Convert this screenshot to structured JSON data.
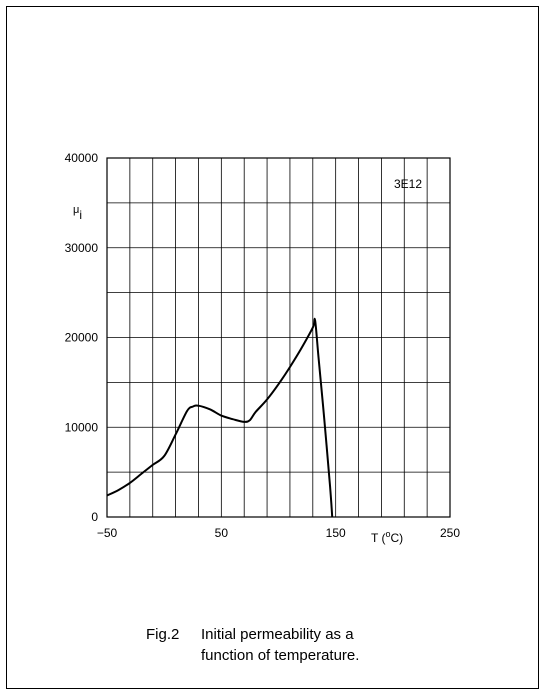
{
  "caption": {
    "figure_number": "Fig.2",
    "line1": "Initial permeability as a",
    "line2": "function of temperature."
  },
  "chart_data": {
    "type": "line",
    "title": "",
    "xlabel": "T (°C)",
    "xlabel_base": "T (",
    "xlabel_degree": "o",
    "xlabel_unit": "C)",
    "ylabel": "μi",
    "ylabel_symbol": "μ",
    "ylabel_subscript": "i",
    "material_label": "3E12",
    "xlim": [
      -50,
      250
    ],
    "ylim": [
      0,
      40000
    ],
    "grid": true,
    "x_tick_labels": [
      {
        "value": -50,
        "label": "−50"
      },
      {
        "value": 50,
        "label": "50"
      },
      {
        "value": 150,
        "label": "150"
      },
      {
        "value": 250,
        "label": "250"
      }
    ],
    "y_tick_labels": [
      {
        "value": 0,
        "label": "0"
      },
      {
        "value": 10000,
        "label": "10000"
      },
      {
        "value": 20000,
        "label": "20000"
      },
      {
        "value": 30000,
        "label": "30000"
      },
      {
        "value": 40000,
        "label": "40000"
      }
    ],
    "x_grid_step": 20,
    "y_grid_step": 5000,
    "series": [
      {
        "x": [
          -50,
          -40,
          -30,
          -20,
          -10,
          0,
          10,
          20,
          25,
          30,
          40,
          50,
          60,
          70,
          75,
          80,
          90,
          100,
          110,
          120,
          130,
          132,
          135,
          140,
          145,
          147
        ],
        "y": [
          2400,
          3000,
          3800,
          4800,
          5800,
          6800,
          9200,
          11800,
          12300,
          12400,
          12000,
          11300,
          10900,
          10600,
          10800,
          11700,
          13100,
          14800,
          16700,
          18800,
          21100,
          21900,
          17800,
          11000,
          3500,
          0
        ]
      }
    ]
  }
}
